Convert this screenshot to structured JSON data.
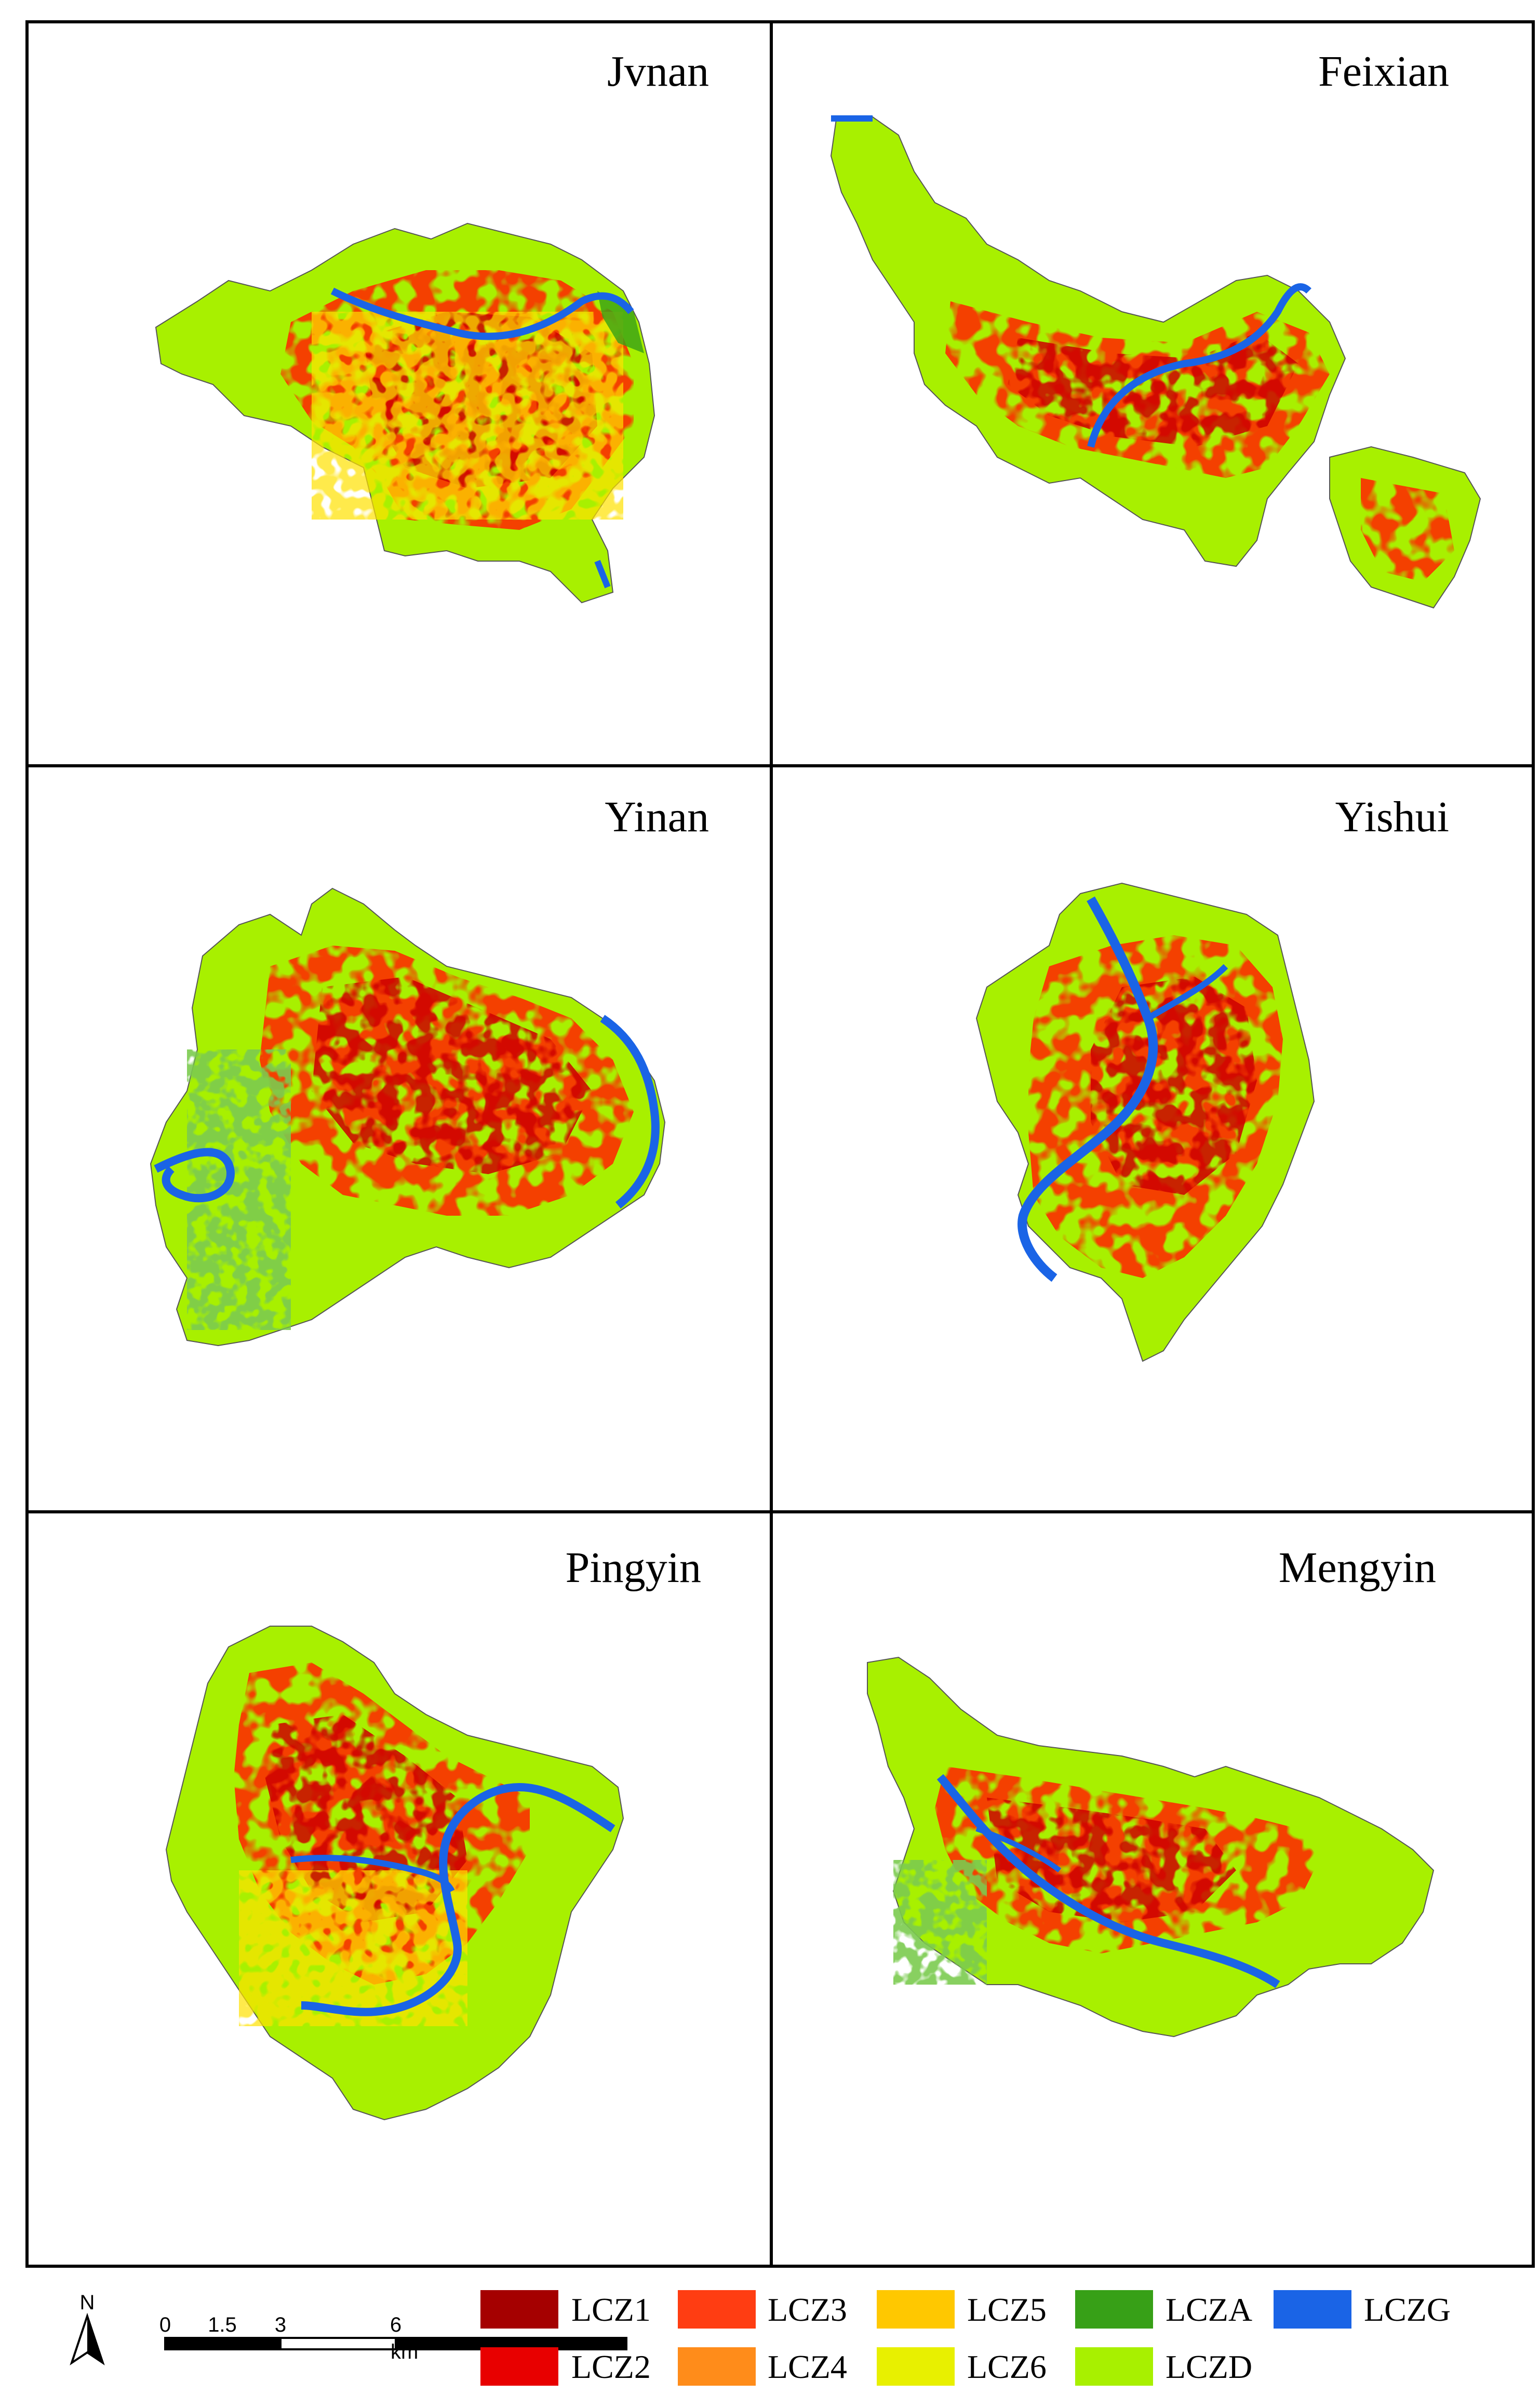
{
  "panels": [
    {
      "id": "jvnan",
      "title": "Jvnan"
    },
    {
      "id": "feixian",
      "title": "Feixian"
    },
    {
      "id": "yinan",
      "title": "Yinan"
    },
    {
      "id": "yishui",
      "title": "Yishui"
    },
    {
      "id": "pingyin",
      "title": "Pingyin"
    },
    {
      "id": "mengyin",
      "title": "Mengyin"
    }
  ],
  "north_arrow": {
    "label": "N"
  },
  "scale_bar": {
    "ticks": [
      "0",
      "1.5",
      "3",
      "6"
    ],
    "unit": "km"
  },
  "legend": [
    {
      "key": "lcz1",
      "label": "LCZ1",
      "color": "#a50000"
    },
    {
      "key": "lcz3",
      "label": "LCZ3",
      "color": "#ff3d12"
    },
    {
      "key": "lcz5",
      "label": "LCZ5",
      "color": "#ffc800"
    },
    {
      "key": "lcza",
      "label": "LCZA",
      "color": "#37a017"
    },
    {
      "key": "lczg",
      "label": "LCZG",
      "color": "#1a64e6"
    },
    {
      "key": "lcz2",
      "label": "LCZ2",
      "color": "#e80000"
    },
    {
      "key": "lcz4",
      "label": "LCZ4",
      "color": "#ff8c1a"
    },
    {
      "key": "lcz6",
      "label": "LCZ6",
      "color": "#e8f000"
    },
    {
      "key": "lczd",
      "label": "LCZD",
      "color": "#a8f000"
    }
  ]
}
